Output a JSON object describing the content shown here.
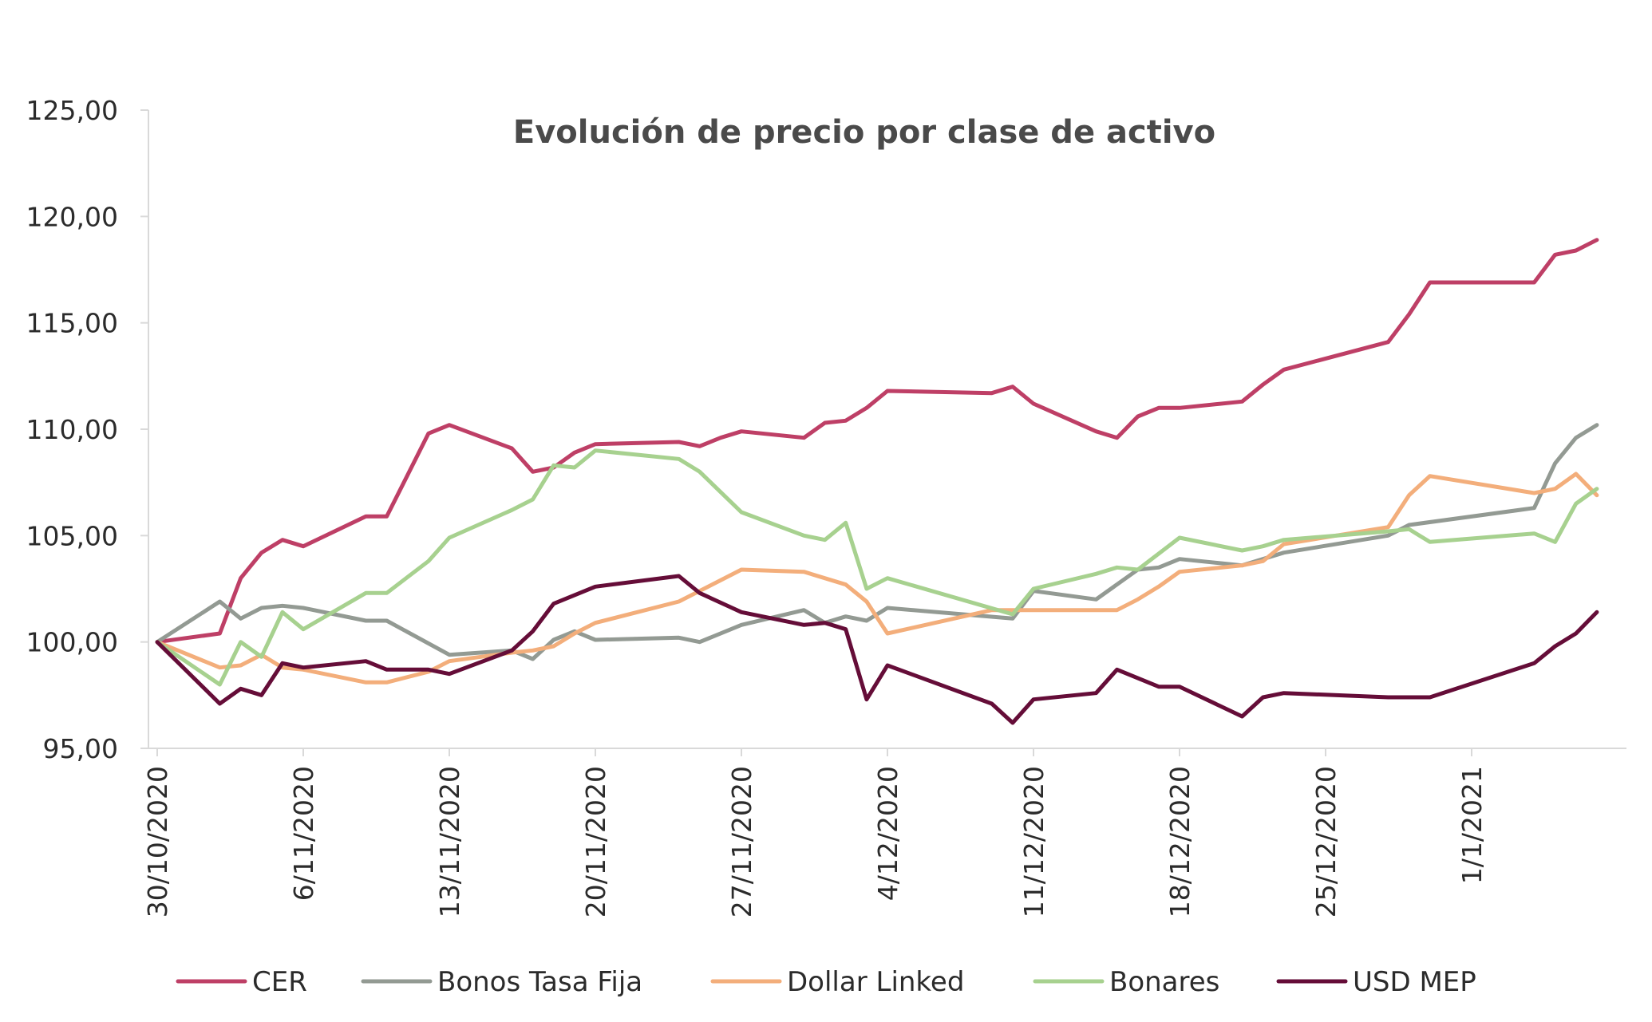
{
  "chart_data": {
    "type": "line",
    "title": "Evolución de precio por clase de activo",
    "xlabel": "",
    "ylabel": "",
    "ylim": [
      95,
      125
    ],
    "yticks": [
      "95,00",
      "100,00",
      "105,00",
      "110,00",
      "115,00",
      "120,00",
      "125,00"
    ],
    "yticks_values": [
      95,
      100,
      105,
      110,
      115,
      120,
      125
    ],
    "xlim": [
      "2020-10-30",
      "2021-01-08"
    ],
    "xtick_dates": [
      "2020-10-30",
      "2020-11-06",
      "2020-11-13",
      "2020-11-20",
      "2020-11-27",
      "2020-12-04",
      "2020-12-11",
      "2020-12-18",
      "2020-12-25",
      "2021-01-01"
    ],
    "xtick_labels": [
      "30/10/2020",
      "6/11/2020",
      "13/11/2020",
      "20/11/2020",
      "27/11/2020",
      "4/12/2020",
      "11/12/2020",
      "18/12/2020",
      "25/12/2020",
      "1/1/2021"
    ],
    "grid": false,
    "legend_position": "bottom",
    "series": [
      {
        "name": "CER",
        "color": "#be3f66",
        "points": [
          [
            "2020-10-30",
            100.0
          ],
          [
            "2020-11-02",
            100.4
          ],
          [
            "2020-11-03",
            103.0
          ],
          [
            "2020-11-04",
            104.2
          ],
          [
            "2020-11-05",
            104.8
          ],
          [
            "2020-11-06",
            104.5
          ],
          [
            "2020-11-09",
            105.9
          ],
          [
            "2020-11-10",
            105.9
          ],
          [
            "2020-11-12",
            109.8
          ],
          [
            "2020-11-13",
            110.2
          ],
          [
            "2020-11-16",
            109.1
          ],
          [
            "2020-11-17",
            108.0
          ],
          [
            "2020-11-18",
            108.2
          ],
          [
            "2020-11-19",
            108.9
          ],
          [
            "2020-11-20",
            109.3
          ],
          [
            "2020-11-24",
            109.4
          ],
          [
            "2020-11-25",
            109.2
          ],
          [
            "2020-11-26",
            109.6
          ],
          [
            "2020-11-27",
            109.9
          ],
          [
            "2020-11-30",
            109.6
          ],
          [
            "2020-12-01",
            110.3
          ],
          [
            "2020-12-02",
            110.4
          ],
          [
            "2020-12-03",
            111.0
          ],
          [
            "2020-12-04",
            111.8
          ],
          [
            "2020-12-09",
            111.7
          ],
          [
            "2020-12-10",
            112.0
          ],
          [
            "2020-12-11",
            111.2
          ],
          [
            "2020-12-14",
            109.9
          ],
          [
            "2020-12-15",
            109.6
          ],
          [
            "2020-12-16",
            110.6
          ],
          [
            "2020-12-17",
            111.0
          ],
          [
            "2020-12-18",
            111.0
          ],
          [
            "2020-12-21",
            111.3
          ],
          [
            "2020-12-22",
            112.1
          ],
          [
            "2020-12-23",
            112.8
          ],
          [
            "2020-12-28",
            114.1
          ],
          [
            "2020-12-29",
            115.4
          ],
          [
            "2020-12-30",
            116.9
          ],
          [
            "2021-01-04",
            116.9
          ],
          [
            "2021-01-05",
            118.2
          ],
          [
            "2021-01-06",
            118.4
          ],
          [
            "2021-01-07",
            118.9
          ]
        ]
      },
      {
        "name": "Bonos Tasa Fija",
        "color": "#939a93",
        "points": [
          [
            "2020-10-30",
            100.0
          ],
          [
            "2020-11-02",
            101.9
          ],
          [
            "2020-11-03",
            101.1
          ],
          [
            "2020-11-04",
            101.6
          ],
          [
            "2020-11-05",
            101.7
          ],
          [
            "2020-11-06",
            101.6
          ],
          [
            "2020-11-09",
            101.0
          ],
          [
            "2020-11-10",
            101.0
          ],
          [
            "2020-11-13",
            99.4
          ],
          [
            "2020-11-16",
            99.6
          ],
          [
            "2020-11-17",
            99.2
          ],
          [
            "2020-11-18",
            100.1
          ],
          [
            "2020-11-19",
            100.5
          ],
          [
            "2020-11-20",
            100.1
          ],
          [
            "2020-11-24",
            100.2
          ],
          [
            "2020-11-25",
            100.0
          ],
          [
            "2020-11-27",
            100.8
          ],
          [
            "2020-11-30",
            101.5
          ],
          [
            "2020-12-01",
            100.9
          ],
          [
            "2020-12-02",
            101.2
          ],
          [
            "2020-12-03",
            101.0
          ],
          [
            "2020-12-04",
            101.6
          ],
          [
            "2020-12-10",
            101.1
          ],
          [
            "2020-12-11",
            102.4
          ],
          [
            "2020-12-14",
            102.0
          ],
          [
            "2020-12-16",
            103.4
          ],
          [
            "2020-12-17",
            103.5
          ],
          [
            "2020-12-18",
            103.9
          ],
          [
            "2020-12-21",
            103.6
          ],
          [
            "2020-12-23",
            104.2
          ],
          [
            "2020-12-28",
            105.0
          ],
          [
            "2020-12-29",
            105.5
          ],
          [
            "2021-01-04",
            106.3
          ],
          [
            "2021-01-05",
            108.4
          ],
          [
            "2021-01-06",
            109.6
          ],
          [
            "2021-01-07",
            110.2
          ]
        ]
      },
      {
        "name": "Dollar Linked",
        "color": "#f3ae7b",
        "points": [
          [
            "2020-10-30",
            100.0
          ],
          [
            "2020-11-02",
            98.8
          ],
          [
            "2020-11-03",
            98.9
          ],
          [
            "2020-11-04",
            99.4
          ],
          [
            "2020-11-05",
            98.8
          ],
          [
            "2020-11-06",
            98.7
          ],
          [
            "2020-11-09",
            98.1
          ],
          [
            "2020-11-10",
            98.1
          ],
          [
            "2020-11-12",
            98.6
          ],
          [
            "2020-11-13",
            99.1
          ],
          [
            "2020-11-16",
            99.5
          ],
          [
            "2020-11-17",
            99.6
          ],
          [
            "2020-11-18",
            99.8
          ],
          [
            "2020-11-19",
            100.4
          ],
          [
            "2020-11-20",
            100.9
          ],
          [
            "2020-11-24",
            101.9
          ],
          [
            "2020-11-25",
            102.4
          ],
          [
            "2020-11-27",
            103.4
          ],
          [
            "2020-11-30",
            103.3
          ],
          [
            "2020-12-02",
            102.7
          ],
          [
            "2020-12-03",
            101.9
          ],
          [
            "2020-12-04",
            100.4
          ],
          [
            "2020-12-09",
            101.5
          ],
          [
            "2020-12-10",
            101.5
          ],
          [
            "2020-12-14",
            101.5
          ],
          [
            "2020-12-15",
            101.5
          ],
          [
            "2020-12-16",
            102.0
          ],
          [
            "2020-12-17",
            102.6
          ],
          [
            "2020-12-18",
            103.3
          ],
          [
            "2020-12-21",
            103.6
          ],
          [
            "2020-12-22",
            103.8
          ],
          [
            "2020-12-23",
            104.6
          ],
          [
            "2020-12-28",
            105.4
          ],
          [
            "2020-12-29",
            106.9
          ],
          [
            "2020-12-30",
            107.8
          ],
          [
            "2021-01-04",
            107.0
          ],
          [
            "2021-01-05",
            107.2
          ],
          [
            "2021-01-06",
            107.9
          ],
          [
            "2021-01-07",
            106.9
          ]
        ]
      },
      {
        "name": "Bonares",
        "color": "#a7d18f",
        "points": [
          [
            "2020-10-30",
            100.0
          ],
          [
            "2020-11-02",
            98.0
          ],
          [
            "2020-11-03",
            100.0
          ],
          [
            "2020-11-04",
            99.3
          ],
          [
            "2020-11-05",
            101.4
          ],
          [
            "2020-11-06",
            100.6
          ],
          [
            "2020-11-09",
            102.3
          ],
          [
            "2020-11-10",
            102.3
          ],
          [
            "2020-11-12",
            103.8
          ],
          [
            "2020-11-13",
            104.9
          ],
          [
            "2020-11-16",
            106.2
          ],
          [
            "2020-11-17",
            106.7
          ],
          [
            "2020-11-18",
            108.3
          ],
          [
            "2020-11-19",
            108.2
          ],
          [
            "2020-11-20",
            109.0
          ],
          [
            "2020-11-24",
            108.6
          ],
          [
            "2020-11-25",
            108.0
          ],
          [
            "2020-11-27",
            106.1
          ],
          [
            "2020-11-30",
            105.0
          ],
          [
            "2020-12-01",
            104.8
          ],
          [
            "2020-12-02",
            105.6
          ],
          [
            "2020-12-03",
            102.5
          ],
          [
            "2020-12-04",
            103.0
          ],
          [
            "2020-12-10",
            101.3
          ],
          [
            "2020-12-11",
            102.5
          ],
          [
            "2020-12-14",
            103.2
          ],
          [
            "2020-12-15",
            103.5
          ],
          [
            "2020-12-16",
            103.4
          ],
          [
            "2020-12-18",
            104.9
          ],
          [
            "2020-12-21",
            104.3
          ],
          [
            "2020-12-22",
            104.5
          ],
          [
            "2020-12-23",
            104.8
          ],
          [
            "2020-12-28",
            105.2
          ],
          [
            "2020-12-29",
            105.3
          ],
          [
            "2020-12-30",
            104.7
          ],
          [
            "2021-01-04",
            105.1
          ],
          [
            "2021-01-05",
            104.7
          ],
          [
            "2021-01-06",
            106.5
          ],
          [
            "2021-01-07",
            107.2
          ]
        ]
      },
      {
        "name": "USD MEP",
        "color": "#650d38",
        "points": [
          [
            "2020-10-30",
            100.0
          ],
          [
            "2020-11-02",
            97.1
          ],
          [
            "2020-11-03",
            97.8
          ],
          [
            "2020-11-04",
            97.5
          ],
          [
            "2020-11-05",
            99.0
          ],
          [
            "2020-11-06",
            98.8
          ],
          [
            "2020-11-09",
            99.1
          ],
          [
            "2020-11-10",
            98.7
          ],
          [
            "2020-11-12",
            98.7
          ],
          [
            "2020-11-13",
            98.5
          ],
          [
            "2020-11-16",
            99.6
          ],
          [
            "2020-11-17",
            100.5
          ],
          [
            "2020-11-18",
            101.8
          ],
          [
            "2020-11-20",
            102.6
          ],
          [
            "2020-11-24",
            103.1
          ],
          [
            "2020-11-25",
            102.3
          ],
          [
            "2020-11-27",
            101.4
          ],
          [
            "2020-11-30",
            100.8
          ],
          [
            "2020-12-01",
            100.9
          ],
          [
            "2020-12-02",
            100.6
          ],
          [
            "2020-12-03",
            97.3
          ],
          [
            "2020-12-04",
            98.9
          ],
          [
            "2020-12-09",
            97.1
          ],
          [
            "2020-12-10",
            96.2
          ],
          [
            "2020-12-11",
            97.3
          ],
          [
            "2020-12-14",
            97.6
          ],
          [
            "2020-12-15",
            98.7
          ],
          [
            "2020-12-17",
            97.9
          ],
          [
            "2020-12-18",
            97.9
          ],
          [
            "2020-12-21",
            96.5
          ],
          [
            "2020-12-22",
            97.4
          ],
          [
            "2020-12-23",
            97.6
          ],
          [
            "2020-12-28",
            97.4
          ],
          [
            "2020-12-29",
            97.4
          ],
          [
            "2020-12-30",
            97.4
          ],
          [
            "2021-01-04",
            99.0
          ],
          [
            "2021-01-05",
            99.8
          ],
          [
            "2021-01-06",
            100.4
          ],
          [
            "2021-01-07",
            101.4
          ]
        ]
      }
    ]
  }
}
